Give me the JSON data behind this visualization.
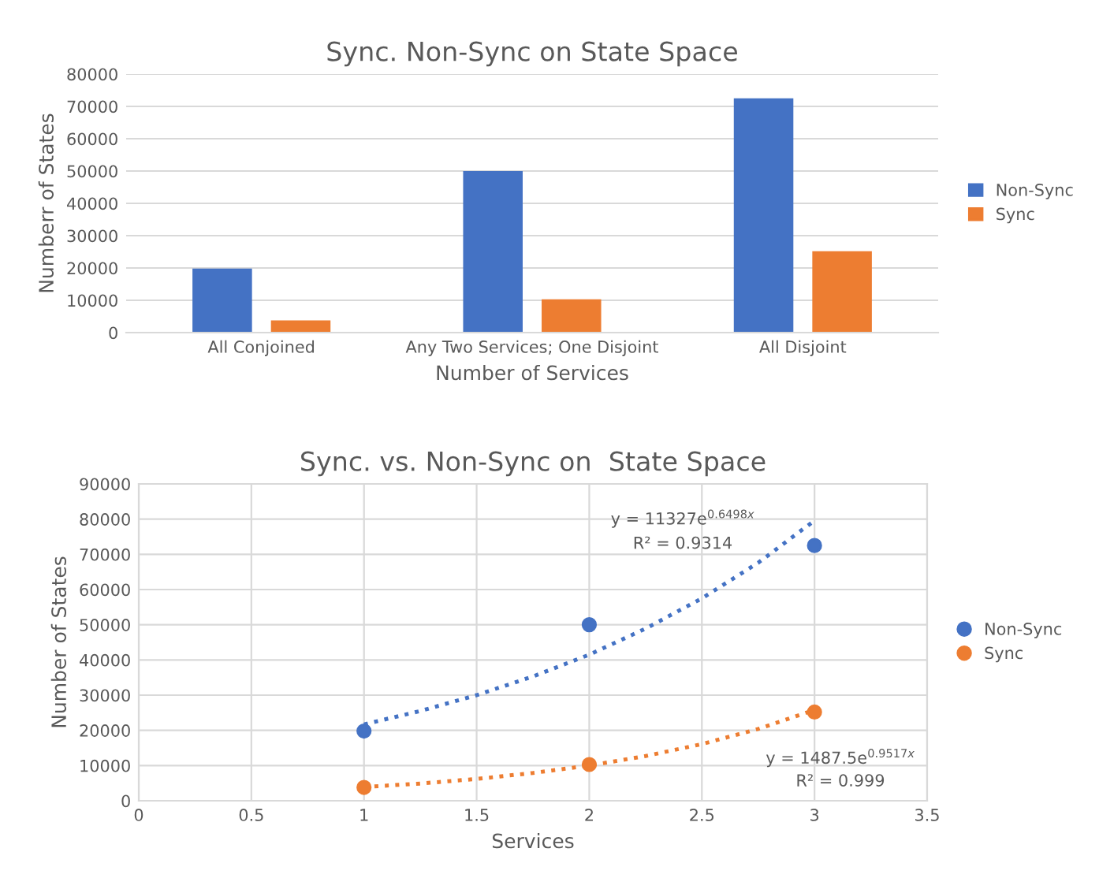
{
  "chart_data": [
    {
      "type": "bar",
      "title": "Sync. Non-Sync on State Space",
      "xlabel": "Number of Services",
      "ylabel": "Numberr of States",
      "categories": [
        "All Conjoined",
        "Any Two Services; One Disjoint",
        "All Disjoint"
      ],
      "series": [
        {
          "name": "Non-Sync",
          "color": "#4472c4",
          "values": [
            19800,
            50000,
            72500
          ]
        },
        {
          "name": "Sync",
          "color": "#ed7d31",
          "values": [
            3800,
            10300,
            25200
          ]
        }
      ],
      "ylim": [
        0,
        80000
      ],
      "yticks": [
        0,
        10000,
        20000,
        30000,
        40000,
        50000,
        60000,
        70000,
        80000
      ],
      "grid": "y",
      "legend": "right"
    },
    {
      "type": "scatter",
      "title": "Sync. vs. Non-Sync on  State Space",
      "xlabel": "Services",
      "ylabel": "Number of States",
      "series": [
        {
          "name": "Non-Sync",
          "color": "#4472c4",
          "x": [
            1,
            2,
            3
          ],
          "values": [
            19800,
            50000,
            72500
          ],
          "marker": "circle"
        },
        {
          "name": "Sync",
          "color": "#ed7d31",
          "x": [
            1,
            2,
            3
          ],
          "values": [
            3800,
            10300,
            25200
          ],
          "marker": "circle"
        },
        {
          "type": "line",
          "color": "#4472c4",
          "line_style": "dotted",
          "x": [
            1,
            1.25,
            1.5,
            1.75,
            2,
            2.25,
            2.5,
            2.75,
            3
          ],
          "values": [
            21700,
            25500,
            30000,
            35300,
            41500,
            48900,
            57500,
            67600,
            79600
          ]
        },
        {
          "type": "line",
          "color": "#ed7d31",
          "line_style": "dotted",
          "x": [
            1,
            1.25,
            1.5,
            1.75,
            2,
            2.25,
            2.5,
            2.75,
            3
          ],
          "values": [
            3900,
            4900,
            6200,
            7900,
            10000,
            12700,
            16100,
            20400,
            25800
          ]
        }
      ],
      "annotations": [
        "y = 11327e$^{0.6498x}$",
        "R² = 0.9314",
        "y = 1487.5e$^{0.9517x}$",
        "R² = 0.999"
      ],
      "xlim": [
        0,
        3.5
      ],
      "xticks": [
        0,
        0.5,
        1,
        1.5,
        2,
        2.5,
        3,
        3.5
      ],
      "ylim": [
        0,
        90000
      ],
      "yticks": [
        0,
        10000,
        20000,
        30000,
        40000,
        50000,
        60000,
        70000,
        80000,
        90000
      ],
      "grid": true,
      "legend": "right"
    }
  ]
}
